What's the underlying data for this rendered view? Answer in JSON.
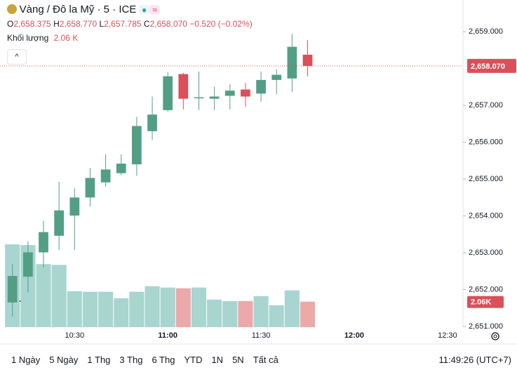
{
  "chart_data": {
    "type": "candlestick",
    "title": "Vàng / Đô la Mỹ · 5 · ICE",
    "ohlc_header": {
      "o_label": "O",
      "o": "2,658.375",
      "h_label": "H",
      "h": "2,658.770",
      "l_label": "L",
      "l": "2,657.785",
      "c_label": "C",
      "c": "2,658.070",
      "change": "−0.520 (−0.02%)"
    },
    "x": [
      "10:10",
      "10:15",
      "10:20",
      "10:25",
      "10:30",
      "10:35",
      "10:40",
      "10:45",
      "10:50",
      "10:55",
      "11:00",
      "11:05",
      "11:10",
      "11:15",
      "11:20",
      "11:25",
      "11:30",
      "11:35",
      "11:40",
      "11:45"
    ],
    "open": [
      2651.65,
      2652.35,
      2653.01,
      2653.46,
      2654.01,
      2654.5,
      2654.91,
      2655.16,
      2655.4,
      2656.3,
      2656.87,
      2657.85,
      2657.2,
      2657.18,
      2657.26,
      2657.43,
      2657.32,
      2657.69,
      2657.73,
      2658.375
    ],
    "high": [
      2652.7,
      2653.31,
      2653.87,
      2654.93,
      2654.75,
      2655.3,
      2655.67,
      2655.67,
      2656.69,
      2657.24,
      2657.9,
      2657.88,
      2657.92,
      2657.51,
      2657.57,
      2657.61,
      2657.92,
      2657.98,
      2658.94,
      2658.77
    ],
    "low": [
      2651.27,
      2651.92,
      2652.6,
      2653.07,
      2653.07,
      2654.26,
      2654.79,
      2655.11,
      2655.09,
      2656.06,
      2656.83,
      2656.89,
      2656.87,
      2656.87,
      2656.89,
      2656.96,
      2657.1,
      2657.3,
      2657.36,
      2657.785
    ],
    "close": [
      2652.37,
      2653.01,
      2653.56,
      2654.15,
      2654.5,
      2655.03,
      2655.26,
      2655.42,
      2656.44,
      2656.75,
      2657.79,
      2657.18,
      2657.22,
      2657.24,
      2657.4,
      2657.24,
      2657.69,
      2657.83,
      2658.59,
      2658.07
    ],
    "up_color": "#529f85",
    "down_color": "#d9505a",
    "volume": {
      "name": "Khối lượng",
      "legend_value": "2.06 K",
      "last_label": "2.06K",
      "values": [
        6690,
        6630,
        5090,
        5030,
        2910,
        2860,
        2860,
        2340,
        2860,
        3310,
        3200,
        3140,
        3200,
        2230,
        2110,
        2110,
        2510,
        1770,
        2970,
        2060
      ],
      "up_color": "#a8d5cf",
      "down_color": "#eba9a9"
    },
    "last_price": {
      "value": 2658.07,
      "label": "2,658.070"
    },
    "xlim": [
      "10:06",
      "12:35"
    ],
    "xticks": [
      "10:30",
      "11:00",
      "11:30",
      "12:00",
      "12:30"
    ],
    "ylim": [
      2650.98,
      2659.86
    ],
    "yticks": [
      {
        "value": 2651,
        "label": "2,651.000"
      },
      {
        "value": 2652,
        "label": "2,652.000"
      },
      {
        "value": 2653,
        "label": "2,653.000"
      },
      {
        "value": 2654,
        "label": "2,654.000"
      },
      {
        "value": 2655,
        "label": "2,655.000"
      },
      {
        "value": 2656,
        "label": "2,656.000"
      },
      {
        "value": 2657,
        "label": "2,657.000"
      },
      {
        "value": 2659,
        "label": "2,659.000"
      }
    ],
    "range_buttons": [
      "1 Ngày",
      "5 Ngày",
      "1 Thg",
      "3 Thg",
      "6 Thg",
      "YTD",
      "1N",
      "5N",
      "Tất cả"
    ],
    "clock": "11:49:26 (UTC+7)"
  }
}
